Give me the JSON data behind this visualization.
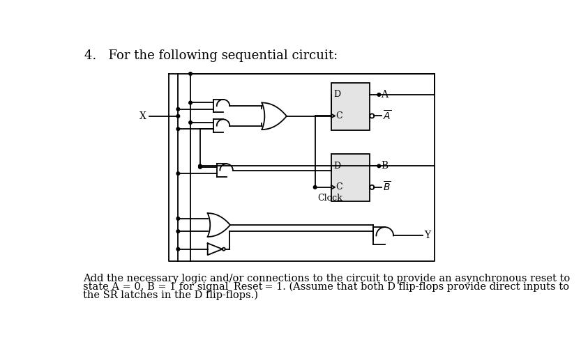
{
  "title_text": "4.   For the following sequential circuit:",
  "footer_line1": "Add the necessary logic and/or connections to the circuit to provide an asynchronous reset to",
  "footer_line2": "state A = 0, B = 1 for signal  Reset = 1. (Assume that both D flip-flops provide direct inputs to",
  "footer_line3": "the SR latches in the D flip-flops.)",
  "bg_color": "#ffffff",
  "lc": "#000000"
}
